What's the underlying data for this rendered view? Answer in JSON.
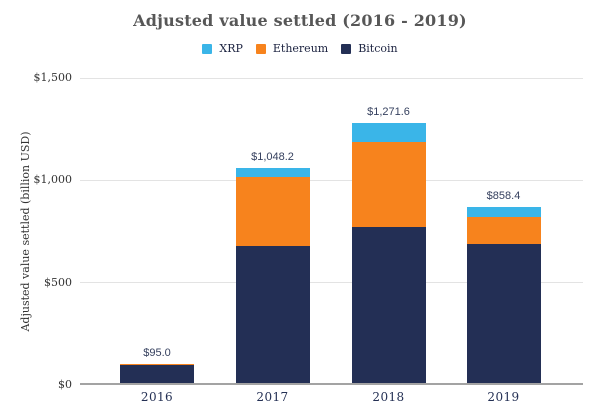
{
  "chart_data": {
    "type": "bar",
    "stacked": true,
    "title": "Adjusted value settled (2016 - 2019)",
    "xlabel": "",
    "ylabel": "Adjusted value settled (billion USD)",
    "categories": [
      "2016",
      "2017",
      "2018",
      "2019"
    ],
    "series": [
      {
        "name": "XRP",
        "color": "#3ab5e8",
        "values": [
          2.0,
          43.2,
          92.6,
          48.4
        ]
      },
      {
        "name": "Ethereum",
        "color": "#f7831d",
        "values": [
          3.0,
          335.0,
          417.0,
          131.0
        ]
      },
      {
        "name": "Bitcoin",
        "color": "#232f55",
        "values": [
          90.0,
          670.0,
          762.0,
          679.0
        ]
      }
    ],
    "totals": [
      95.0,
      1048.2,
      1271.6,
      858.4
    ],
    "total_labels": [
      "$95.0",
      "$1,048.2",
      "$1,271.6",
      "$858.4"
    ],
    "ylim": [
      0,
      1500
    ],
    "yticks": [
      {
        "value": 0,
        "label": "$0"
      },
      {
        "value": 500,
        "label": "$500"
      },
      {
        "value": 1000,
        "label": "$1,000"
      },
      {
        "value": 1500,
        "label": "$1,500"
      }
    ],
    "grid": true,
    "legend_position": "top"
  },
  "colors": {
    "background": "#ffffff",
    "title_text": "#575757",
    "legend_text": "#1c2340",
    "axis_text": "#333333",
    "category_text": "#243054",
    "value_label_text": "#36415f",
    "gridline": "#e3e3e3",
    "baseline": "#a3a3a3"
  }
}
